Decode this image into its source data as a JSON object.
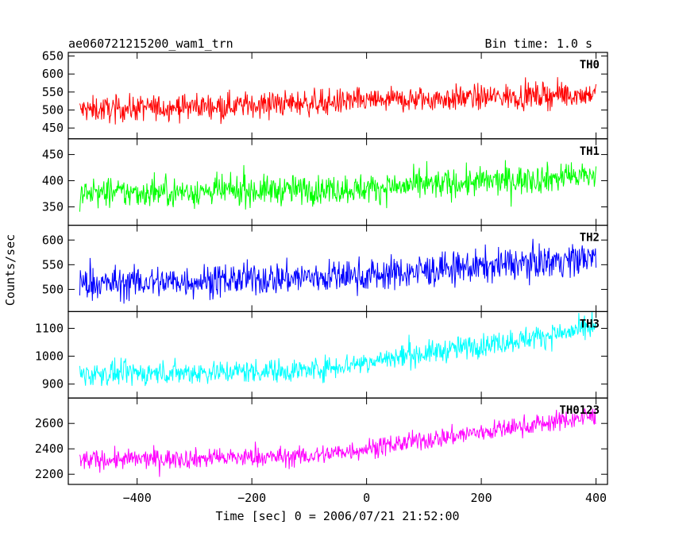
{
  "header": {
    "title": "ae060721215200_wam1_trn",
    "bin_time": "Bin time: 1.0 s"
  },
  "chart_data": {
    "type": "line",
    "xlabel": "Time [sec] 0 = 2006/07/21 21:52:00",
    "ylabel": "Counts/sec",
    "xlim": [
      -520,
      420
    ],
    "x_ticks": [
      -400,
      -200,
      0,
      200,
      400
    ],
    "x_tick_labels": [
      "−400",
      "−200",
      "0",
      "200",
      "400"
    ],
    "x_range_data": [
      -500,
      400
    ],
    "panels": [
      {
        "name": "TH0",
        "color": "#ff0000",
        "ylim": [
          420,
          660
        ],
        "y_ticks": [
          450,
          500,
          550,
          600,
          650
        ],
        "trend": {
          "x": [
            -500,
            0,
            400
          ],
          "y": [
            500,
            525,
            545
          ]
        },
        "noise_amplitude": 32
      },
      {
        "name": "TH1",
        "color": "#00ff00",
        "ylim": [
          315,
          480
        ],
        "y_ticks": [
          350,
          400,
          450
        ],
        "trend": {
          "x": [
            -500,
            0,
            400
          ],
          "y": [
            375,
            385,
            410
          ]
        },
        "noise_amplitude": 25
      },
      {
        "name": "TH2",
        "color": "#0000ff",
        "ylim": [
          455,
          630
        ],
        "y_ticks": [
          500,
          550,
          600
        ],
        "trend": {
          "x": [
            -500,
            0,
            400
          ],
          "y": [
            510,
            528,
            565
          ]
        },
        "noise_amplitude": 30
      },
      {
        "name": "TH3",
        "color": "#00ffff",
        "ylim": [
          850,
          1160
        ],
        "y_ticks": [
          900,
          1000,
          1100
        ],
        "trend": {
          "x": [
            -500,
            -100,
            400
          ],
          "y": [
            935,
            950,
            1100
          ]
        },
        "noise_amplitude": 38
      },
      {
        "name": "TH0123",
        "color": "#ff00ff",
        "ylim": [
          2120,
          2800
        ],
        "y_ticks": [
          2200,
          2400,
          2600
        ],
        "trend": {
          "x": [
            -500,
            -100,
            400
          ],
          "y": [
            2310,
            2340,
            2660
          ]
        },
        "noise_amplitude": 70
      }
    ]
  }
}
